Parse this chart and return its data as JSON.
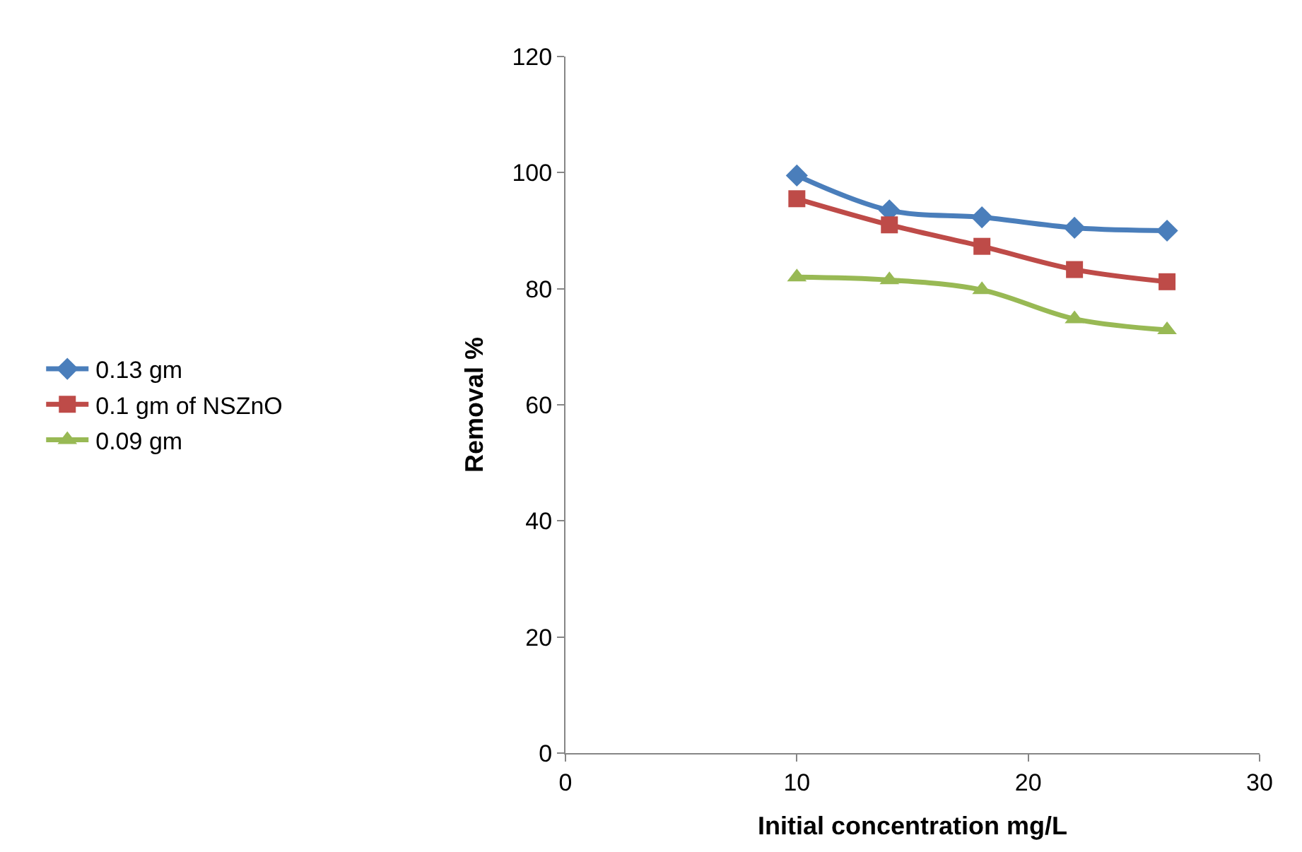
{
  "chart_data": {
    "type": "line",
    "xlabel": "Initial concentration mg/L",
    "ylabel": "Removal %",
    "x": [
      10,
      14,
      18,
      22,
      26
    ],
    "series": [
      {
        "name": "0.13 gm",
        "color": "#4a7ebb",
        "marker": "diamond",
        "values": [
          99.5,
          93.5,
          92.3,
          90.5,
          90
        ]
      },
      {
        "name": "0.1 gm of NSZnO",
        "color": "#be4b48",
        "marker": "square",
        "values": [
          95.5,
          91,
          87.3,
          83.3,
          81.2
        ]
      },
      {
        "name": "0.09 gm",
        "color": "#98b954",
        "marker": "triangle",
        "values": [
          82,
          81.5,
          79.8,
          74.8,
          72.9
        ]
      }
    ],
    "xlim": [
      0,
      30
    ],
    "xticks": [
      0,
      10,
      20,
      30
    ],
    "ylim": [
      0,
      120
    ],
    "yticks": [
      0,
      20,
      40,
      60,
      80,
      100,
      120
    ],
    "grid": false,
    "legend": "left",
    "line_style": "solid"
  }
}
